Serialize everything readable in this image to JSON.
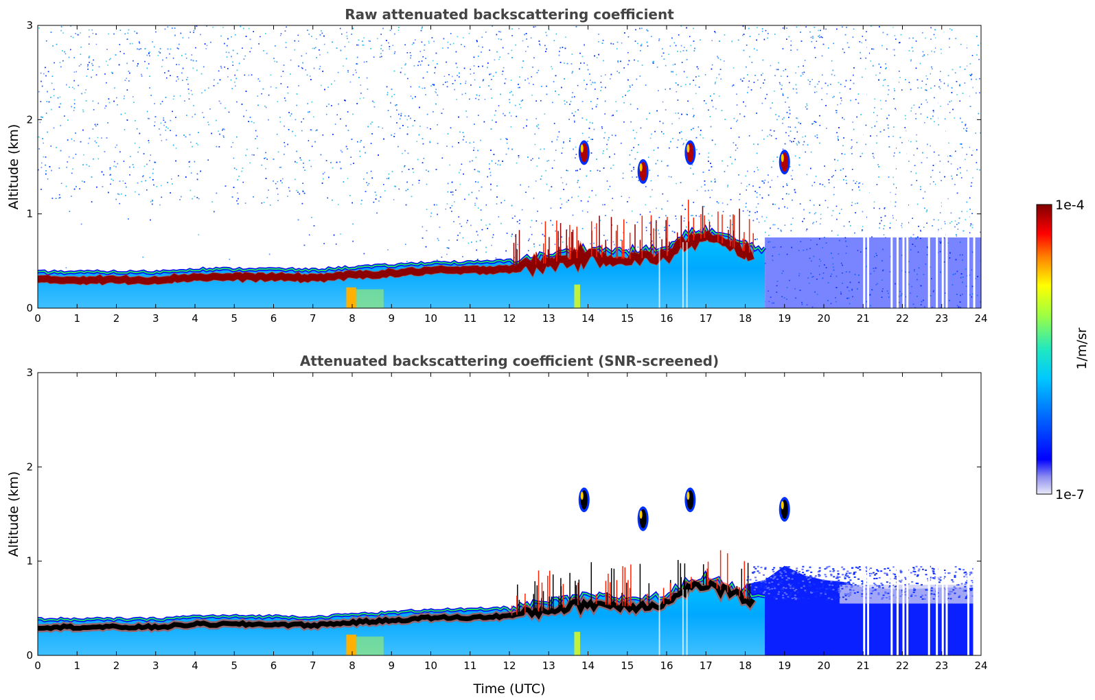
{
  "chart_data": [
    {
      "type": "heatmap",
      "title": "Raw attenuated backscattering coefficient",
      "ylabel": "Altitude (km)",
      "xlabel": "",
      "xlim": [
        0,
        24
      ],
      "ylim": [
        0,
        3
      ],
      "x_ticks": [
        0,
        1,
        2,
        3,
        4,
        5,
        6,
        7,
        8,
        9,
        10,
        11,
        12,
        13,
        14,
        15,
        16,
        17,
        18,
        19,
        20,
        21,
        22,
        23,
        24
      ],
      "y_ticks": [
        0,
        1,
        2,
        3
      ],
      "boundary_layer_top_km": {
        "time_utc": [
          0,
          1,
          2,
          3,
          4,
          5,
          6,
          7,
          8,
          9,
          10,
          11,
          12,
          13,
          14,
          15,
          16,
          16.5,
          17,
          18,
          18.5
        ],
        "altitude": [
          0.3,
          0.3,
          0.3,
          0.3,
          0.33,
          0.33,
          0.33,
          0.32,
          0.35,
          0.37,
          0.4,
          0.4,
          0.42,
          0.48,
          0.55,
          0.52,
          0.55,
          0.7,
          0.75,
          0.6,
          0.55
        ]
      },
      "elevated_features": [
        {
          "time_utc": 15.4,
          "altitude_km": 1.45
        },
        {
          "time_utc": 16.6,
          "altitude_km": 1.65
        },
        {
          "time_utc": 13.9,
          "altitude_km": 1.65
        },
        {
          "time_utc": 19.0,
          "altitude_km": 1.55
        }
      ],
      "noise_level": "high"
    },
    {
      "type": "heatmap",
      "title": "Attenuated backscattering coefficient (SNR-screened)",
      "ylabel": "Altitude (km)",
      "xlabel": "Time (UTC)",
      "xlim": [
        0,
        24
      ],
      "ylim": [
        0,
        3
      ],
      "x_ticks": [
        0,
        1,
        2,
        3,
        4,
        5,
        6,
        7,
        8,
        9,
        10,
        11,
        12,
        13,
        14,
        15,
        16,
        17,
        18,
        19,
        20,
        21,
        22,
        23,
        24
      ],
      "y_ticks": [
        0,
        1,
        2,
        3
      ],
      "boundary_layer_top_km": {
        "time_utc": [
          0,
          1,
          2,
          3,
          4,
          5,
          6,
          7,
          8,
          9,
          10,
          11,
          12,
          13,
          14,
          15,
          16,
          16.5,
          17,
          18,
          18.5
        ],
        "altitude": [
          0.3,
          0.3,
          0.3,
          0.3,
          0.33,
          0.33,
          0.33,
          0.32,
          0.35,
          0.37,
          0.4,
          0.4,
          0.42,
          0.48,
          0.55,
          0.52,
          0.55,
          0.7,
          0.75,
          0.6,
          0.55
        ]
      },
      "elevated_features": [
        {
          "time_utc": 15.4,
          "altitude_km": 1.45
        },
        {
          "time_utc": 16.6,
          "altitude_km": 1.65
        },
        {
          "time_utc": 13.9,
          "altitude_km": 1.65
        },
        {
          "time_utc": 19.0,
          "altitude_km": 1.55
        }
      ],
      "noise_level": "screened"
    }
  ],
  "colorbar": {
    "label": "1/m/sr",
    "max_label": "1e-4",
    "min_label": "1e-7",
    "colormap": "jet",
    "colors": [
      "#e8e8f8",
      "#0000ff",
      "#00a0ff",
      "#00ffff",
      "#80ff80",
      "#ffff00",
      "#ff8000",
      "#ff0000",
      "#800000"
    ]
  }
}
